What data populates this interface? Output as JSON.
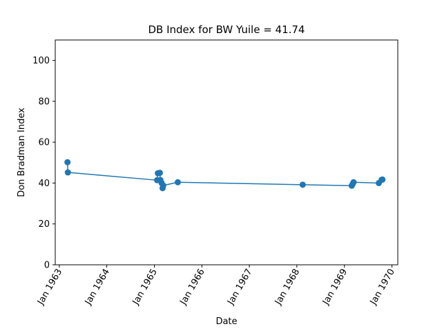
{
  "chart_data": {
    "type": "line",
    "title": "DB Index for BW Yuile = 41.74",
    "xlabel": "Date",
    "ylabel": "Don Bradman Index",
    "xlim": [
      "1962-12-01",
      "1970-02-15"
    ],
    "ylim": [
      0,
      110
    ],
    "yticks": [
      0,
      20,
      40,
      60,
      80,
      100
    ],
    "xticks": [
      {
        "value": "1963-01-01",
        "label": "Jan 1963"
      },
      {
        "value": "1964-01-01",
        "label": "Jan 1964"
      },
      {
        "value": "1965-01-01",
        "label": "Jan 1965"
      },
      {
        "value": "1966-01-01",
        "label": "Jan 1966"
      },
      {
        "value": "1967-01-01",
        "label": "Jan 1967"
      },
      {
        "value": "1968-01-01",
        "label": "Jan 1968"
      },
      {
        "value": "1969-01-01",
        "label": "Jan 1969"
      },
      {
        "value": "1970-01-01",
        "label": "Jan 1970"
      }
    ],
    "grid": false,
    "color": "#1f77b4",
    "series": [
      {
        "x": [
          "1963-03-05",
          "1963-03-08",
          "1965-01-22",
          "1965-01-28",
          "1965-02-12",
          "1965-02-16",
          "1965-02-26",
          "1965-03-05",
          "1965-03-10",
          "1965-06-30",
          "1968-02-15",
          "1969-02-26",
          "1969-03-05",
          "1969-03-12",
          "1969-09-22",
          "1969-10-14",
          "1969-10-20"
        ],
        "y": [
          50.2,
          45.2,
          41.4,
          44.8,
          45.0,
          41.5,
          40.0,
          37.5,
          38.8,
          40.4,
          39.2,
          38.7,
          39.5,
          40.4,
          40.0,
          41.6,
          41.7
        ]
      }
    ]
  }
}
